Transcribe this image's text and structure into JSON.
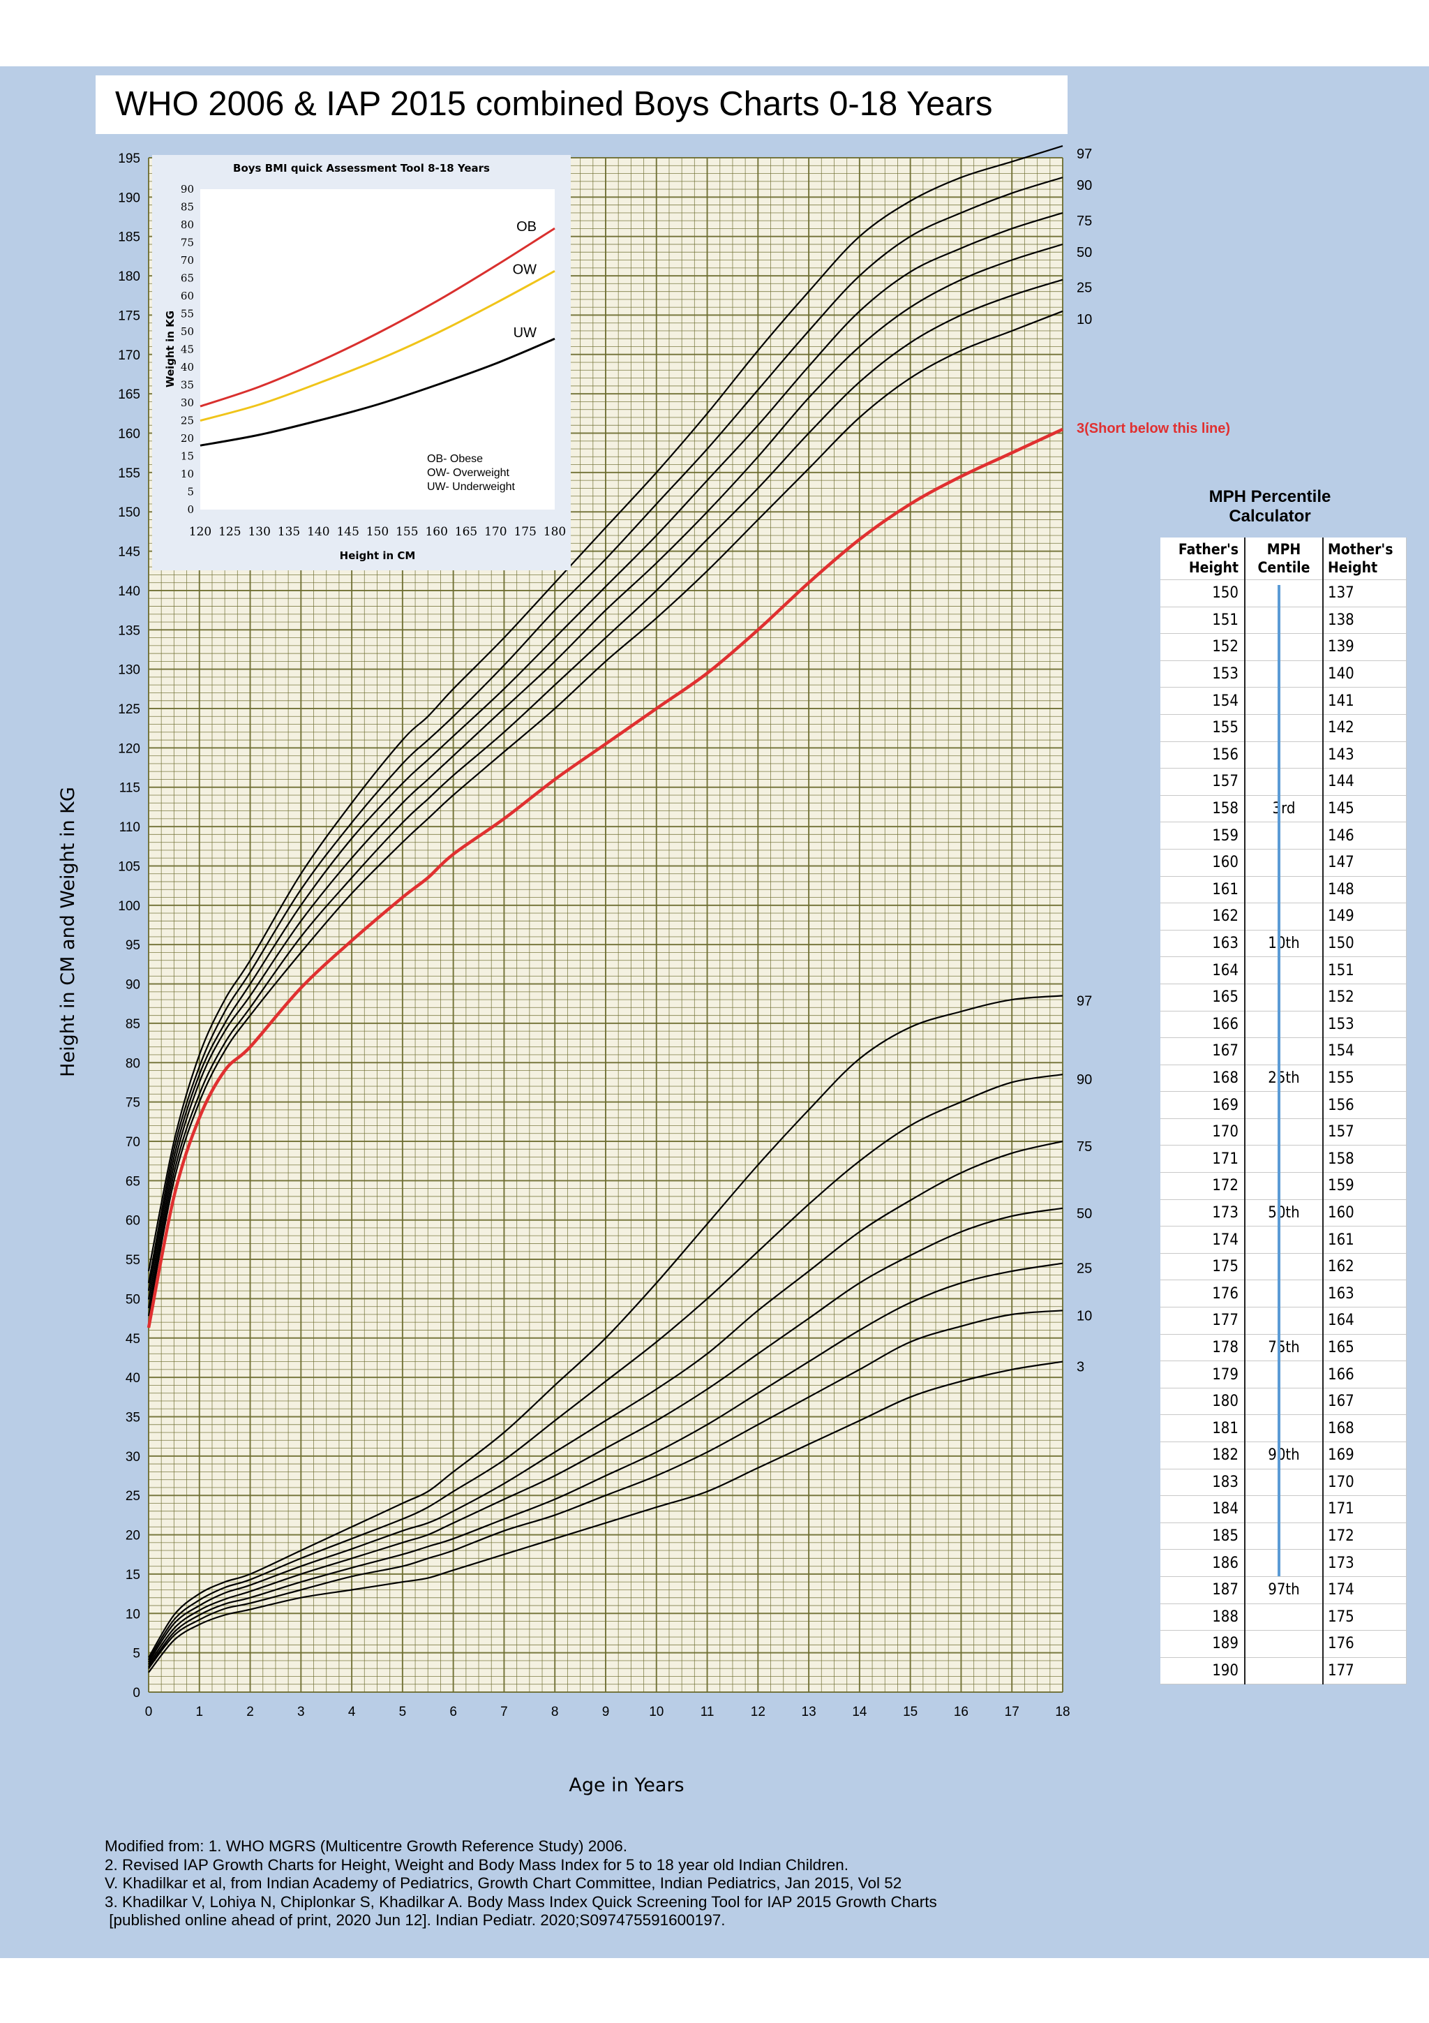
{
  "title": "WHO 2006 & IAP 2015 combined Boys Charts 0-18 Years",
  "colors": {
    "background": "#b9cde6",
    "grid": "#6b6b2e",
    "grid_fill": "#f4f1e1",
    "line": "#000000",
    "short_line": "#e03030",
    "ob": "#d9302e",
    "ow": "#f0c419",
    "uw": "#000000",
    "mph_bar": "#5b9bd5"
  },
  "chart_data": [
    {
      "type": "line",
      "xlabel": "Age in Years",
      "ylabel": "Height in CM and Weight in KG",
      "xlim": [
        0,
        18
      ],
      "ylim": [
        0,
        195
      ],
      "x_ticks": [
        0,
        1,
        2,
        3,
        4,
        5,
        6,
        7,
        8,
        9,
        10,
        11,
        12,
        13,
        14,
        15,
        16,
        17,
        18
      ],
      "y_ticks": [
        0,
        5,
        10,
        15,
        20,
        25,
        30,
        35,
        40,
        45,
        50,
        55,
        60,
        65,
        70,
        75,
        80,
        85,
        90,
        95,
        100,
        105,
        110,
        115,
        120,
        125,
        130,
        135,
        140,
        145,
        150,
        155,
        160,
        165,
        170,
        175,
        180,
        185,
        190,
        195
      ],
      "grid": "on",
      "height_series": [
        {
          "name": "97",
          "label": "97",
          "x": [
            0,
            0.5,
            1,
            1.5,
            2,
            3,
            4,
            5,
            5.5,
            6,
            7,
            8,
            9,
            10,
            11,
            12,
            13,
            14,
            15,
            16,
            17,
            18
          ],
          "values": [
            53.5,
            70,
            81,
            88,
            93,
            104,
            113,
            121,
            124,
            127.5,
            134,
            141,
            148,
            155,
            162.5,
            170.5,
            178,
            185,
            189.5,
            192.5,
            194.5,
            196.5
          ]
        },
        {
          "name": "90",
          "label": "90",
          "x": [
            0,
            0.5,
            1,
            1.5,
            2,
            3,
            4,
            5,
            5.5,
            6,
            7,
            8,
            9,
            10,
            11,
            12,
            13,
            14,
            15,
            16,
            17,
            18
          ],
          "values": [
            52,
            69,
            79.5,
            86.5,
            91.5,
            102,
            110.5,
            118,
            121,
            124,
            130.5,
            137.5,
            144,
            151,
            158,
            165.5,
            173,
            180,
            185,
            188,
            190.5,
            192.5
          ]
        },
        {
          "name": "75",
          "label": "75",
          "x": [
            0,
            0.5,
            1,
            1.5,
            2,
            3,
            4,
            5,
            5.5,
            6,
            7,
            8,
            9,
            10,
            11,
            12,
            13,
            14,
            15,
            16,
            17,
            18
          ],
          "values": [
            51,
            68,
            78.5,
            85,
            90,
            100,
            108.5,
            115.5,
            118.5,
            121.5,
            127.5,
            134,
            140.5,
            147,
            154,
            161,
            168.5,
            175.5,
            180.5,
            183.5,
            186,
            188
          ]
        },
        {
          "name": "50",
          "label": "50",
          "x": [
            0,
            0.5,
            1,
            1.5,
            2,
            3,
            4,
            5,
            5.5,
            6,
            7,
            8,
            9,
            10,
            11,
            12,
            13,
            14,
            15,
            16,
            17,
            18
          ],
          "values": [
            49.9,
            67,
            77.5,
            84,
            88.5,
            98,
            106,
            113,
            116,
            119,
            125,
            131,
            137.5,
            143.5,
            150,
            157,
            164.5,
            171,
            176,
            179.5,
            182,
            184
          ]
        },
        {
          "name": "25",
          "label": "25",
          "x": [
            0,
            0.5,
            1,
            1.5,
            2,
            3,
            4,
            5,
            5.5,
            6,
            7,
            8,
            9,
            10,
            11,
            12,
            13,
            14,
            15,
            16,
            17,
            18
          ],
          "values": [
            48.8,
            66,
            76,
            82.5,
            87,
            96,
            103.5,
            110.5,
            113.5,
            116.5,
            122,
            128,
            134,
            140,
            146.5,
            153,
            160,
            166.5,
            171.5,
            175,
            177.5,
            179.5
          ]
        },
        {
          "name": "10",
          "label": "10",
          "x": [
            0,
            0.5,
            1,
            1.5,
            2,
            3,
            4,
            5,
            5.5,
            6,
            7,
            8,
            9,
            10,
            11,
            12,
            13,
            14,
            15,
            16,
            17,
            18
          ],
          "values": [
            47.8,
            65,
            75,
            81.5,
            86,
            94,
            101.5,
            108,
            111,
            114,
            119.5,
            125,
            131,
            136.5,
            142.5,
            149,
            155.5,
            162,
            167,
            170.5,
            173,
            175.5
          ]
        },
        {
          "name": "3",
          "label": "3(Short below this line)",
          "x": [
            0,
            0.5,
            1,
            1.5,
            2,
            3,
            4,
            5,
            5.5,
            6,
            7,
            8,
            9,
            10,
            11,
            12,
            13,
            14,
            15,
            16,
            17,
            18
          ],
          "values": [
            46.3,
            63,
            73,
            79,
            82,
            89.5,
            95.5,
            101,
            103.5,
            106.5,
            111,
            116,
            120.5,
            125,
            129.5,
            135,
            141,
            146.5,
            151,
            154.5,
            157.5,
            160.5
          ]
        }
      ],
      "weight_series": [
        {
          "name": "97",
          "label": "97",
          "x": [
            0,
            0.5,
            1,
            1.5,
            2,
            3,
            4,
            5,
            5.5,
            6,
            7,
            8,
            9,
            10,
            11,
            12,
            13,
            14,
            15,
            16,
            17,
            18
          ],
          "values": [
            4.4,
            9.8,
            12.5,
            14,
            15,
            18,
            21,
            24,
            25.5,
            28,
            33,
            39,
            45,
            52,
            59.5,
            67,
            74,
            80.5,
            84.5,
            86.5,
            88,
            88.5
          ]
        },
        {
          "name": "90",
          "label": "90",
          "x": [
            0,
            0.5,
            1,
            1.5,
            2,
            3,
            4,
            5,
            5.5,
            6,
            7,
            8,
            9,
            10,
            11,
            12,
            13,
            14,
            15,
            16,
            17,
            18
          ],
          "values": [
            4.1,
            9.2,
            11.7,
            13.3,
            14.3,
            17,
            19.5,
            22,
            23.5,
            25.5,
            29.5,
            34.5,
            39.5,
            44.5,
            50,
            56,
            62,
            67.5,
            72,
            75,
            77.5,
            78.5
          ]
        },
        {
          "name": "75",
          "label": "75",
          "x": [
            0,
            0.5,
            1,
            1.5,
            2,
            3,
            4,
            5,
            5.5,
            6,
            7,
            8,
            9,
            10,
            11,
            12,
            13,
            14,
            15,
            16,
            17,
            18
          ],
          "values": [
            3.8,
            8.7,
            11,
            12.6,
            13.6,
            16,
            18.2,
            20.5,
            21.5,
            23,
            26.5,
            30.5,
            34.5,
            38.5,
            43,
            48.5,
            53.5,
            58.5,
            62.5,
            66,
            68.5,
            70
          ]
        },
        {
          "name": "50",
          "label": "50",
          "x": [
            0,
            0.5,
            1,
            1.5,
            2,
            3,
            4,
            5,
            5.5,
            6,
            7,
            8,
            9,
            10,
            11,
            12,
            13,
            14,
            15,
            16,
            17,
            18
          ],
          "values": [
            3.5,
            8.1,
            10.4,
            11.8,
            12.8,
            15,
            17,
            19,
            20,
            21.5,
            24.5,
            27.5,
            31,
            34.5,
            38.5,
            43,
            47.5,
            52,
            55.5,
            58.5,
            60.5,
            61.5
          ]
        },
        {
          "name": "25",
          "label": "25",
          "x": [
            0,
            0.5,
            1,
            1.5,
            2,
            3,
            4,
            5,
            5.5,
            6,
            7,
            8,
            9,
            10,
            11,
            12,
            13,
            14,
            15,
            16,
            17,
            18
          ],
          "values": [
            3.2,
            7.6,
            9.8,
            11.2,
            12,
            14,
            15.8,
            17.5,
            18.5,
            19.5,
            22,
            24.5,
            27.5,
            30.5,
            34,
            38,
            42,
            46,
            49.5,
            52,
            53.5,
            54.5
          ]
        },
        {
          "name": "10",
          "label": "10",
          "x": [
            0,
            0.5,
            1,
            1.5,
            2,
            3,
            4,
            5,
            5.5,
            6,
            7,
            8,
            9,
            10,
            11,
            12,
            13,
            14,
            15,
            16,
            17,
            18
          ],
          "values": [
            3,
            7.2,
            9.2,
            10.6,
            11.3,
            13,
            14.7,
            16,
            17,
            18,
            20.5,
            22.5,
            25,
            27.5,
            30.5,
            34,
            37.5,
            41,
            44.5,
            46.5,
            48,
            48.5
          ]
        },
        {
          "name": "3",
          "label": "3",
          "x": [
            0,
            0.5,
            1,
            1.5,
            2,
            3,
            4,
            5,
            5.5,
            6,
            7,
            8,
            9,
            10,
            11,
            12,
            13,
            14,
            15,
            16,
            17,
            18
          ],
          "values": [
            2.5,
            6.6,
            8.6,
            9.8,
            10.5,
            12,
            13,
            14,
            14.5,
            15.5,
            17.5,
            19.5,
            21.5,
            23.5,
            25.5,
            28.5,
            31.5,
            34.5,
            37.5,
            39.5,
            41,
            42
          ]
        }
      ]
    },
    {
      "type": "line",
      "title": "Boys BMI quick Assessment Tool 8-18 Years",
      "xlabel": "Height in CM",
      "ylabel": "Weight in KG",
      "xlim": [
        120,
        180
      ],
      "ylim": [
        0,
        90
      ],
      "x_ticks": [
        120,
        125,
        130,
        135,
        140,
        145,
        150,
        155,
        160,
        165,
        170,
        175,
        180
      ],
      "y_ticks": [
        0,
        5,
        10,
        15,
        20,
        25,
        30,
        35,
        40,
        45,
        50,
        55,
        60,
        65,
        70,
        75,
        80,
        85,
        90
      ],
      "legend": [
        "OB- Obese",
        "OW- Overweight",
        "UW- Underweight"
      ],
      "legend_position": "bottom-right",
      "series": [
        {
          "name": "OB",
          "x": [
            120,
            130,
            140,
            150,
            160,
            170,
            180
          ],
          "values": [
            29,
            34.5,
            41.5,
            49.5,
            58.5,
            68.5,
            79
          ]
        },
        {
          "name": "OW",
          "x": [
            120,
            130,
            140,
            150,
            160,
            170,
            180
          ],
          "values": [
            25,
            29.5,
            35.5,
            42,
            49.5,
            58,
            67
          ]
        },
        {
          "name": "UW",
          "x": [
            120,
            130,
            140,
            150,
            160,
            170,
            180
          ],
          "values": [
            18,
            21,
            25,
            29.5,
            35,
            41,
            48
          ]
        }
      ]
    }
  ],
  "mph": {
    "title_line1": "MPH  Percentile",
    "title_line2": "Calculator",
    "headers": {
      "father": [
        "Father's",
        "Height"
      ],
      "centile": [
        "MPH",
        "Centile"
      ],
      "mother": [
        "Mother's",
        "Height"
      ]
    },
    "rows": [
      {
        "f": "150",
        "c": "",
        "m": "137"
      },
      {
        "f": "151",
        "c": "",
        "m": "138"
      },
      {
        "f": "152",
        "c": "",
        "m": "139"
      },
      {
        "f": "153",
        "c": "",
        "m": "140"
      },
      {
        "f": "154",
        "c": "",
        "m": "141"
      },
      {
        "f": "155",
        "c": "",
        "m": "142"
      },
      {
        "f": "156",
        "c": "",
        "m": "143"
      },
      {
        "f": "157",
        "c": "",
        "m": "144"
      },
      {
        "f": "158",
        "c": "3rd",
        "m": "145"
      },
      {
        "f": "159",
        "c": "",
        "m": "146"
      },
      {
        "f": "160",
        "c": "",
        "m": "147"
      },
      {
        "f": "161",
        "c": "",
        "m": "148"
      },
      {
        "f": "162",
        "c": "",
        "m": "149"
      },
      {
        "f": "163",
        "c": "10th",
        "m": "150"
      },
      {
        "f": "164",
        "c": "",
        "m": "151"
      },
      {
        "f": "165",
        "c": "",
        "m": "152"
      },
      {
        "f": "166",
        "c": "",
        "m": "153"
      },
      {
        "f": "167",
        "c": "",
        "m": "154"
      },
      {
        "f": "168",
        "c": "25th",
        "m": "155"
      },
      {
        "f": "169",
        "c": "",
        "m": "156"
      },
      {
        "f": "170",
        "c": "",
        "m": "157"
      },
      {
        "f": "171",
        "c": "",
        "m": "158"
      },
      {
        "f": "172",
        "c": "",
        "m": "159"
      },
      {
        "f": "173",
        "c": "50th",
        "m": "160"
      },
      {
        "f": "174",
        "c": "",
        "m": "161"
      },
      {
        "f": "175",
        "c": "",
        "m": "162"
      },
      {
        "f": "176",
        "c": "",
        "m": "163"
      },
      {
        "f": "177",
        "c": "",
        "m": "164"
      },
      {
        "f": "178",
        "c": "75th",
        "m": "165"
      },
      {
        "f": "179",
        "c": "",
        "m": "166"
      },
      {
        "f": "180",
        "c": "",
        "m": "167"
      },
      {
        "f": "181",
        "c": "",
        "m": "168"
      },
      {
        "f": "182",
        "c": "90th",
        "m": "169"
      },
      {
        "f": "183",
        "c": "",
        "m": "170"
      },
      {
        "f": "184",
        "c": "",
        "m": "171"
      },
      {
        "f": "185",
        "c": "",
        "m": "172"
      },
      {
        "f": "186",
        "c": "",
        "m": "173"
      },
      {
        "f": "187",
        "c": "97th",
        "m": "174"
      },
      {
        "f": "188",
        "c": "",
        "m": "175"
      },
      {
        "f": "189",
        "c": "",
        "m": "176"
      },
      {
        "f": "190",
        "c": "",
        "m": "177"
      }
    ]
  },
  "footer": [
    "Modified from: 1. WHO MGRS (Multicentre Growth Reference Study) 2006.",
    "2. Revised IAP Growth Charts for Height, Weight and Body Mass Index for 5 to 18 year old Indian Children.",
    "V. Khadilkar et al, from Indian Academy of Pediatrics, Growth Chart Committee, Indian Pediatrics, Jan 2015, Vol 52",
    "3. Khadilkar V, Lohiya N, Chiplonkar S, Khadilkar A. Body Mass Index Quick Screening Tool for IAP 2015 Growth Charts",
    " [published online ahead of print, 2020 Jun 12]. Indian Pediatr. 2020;S097475591600197."
  ]
}
